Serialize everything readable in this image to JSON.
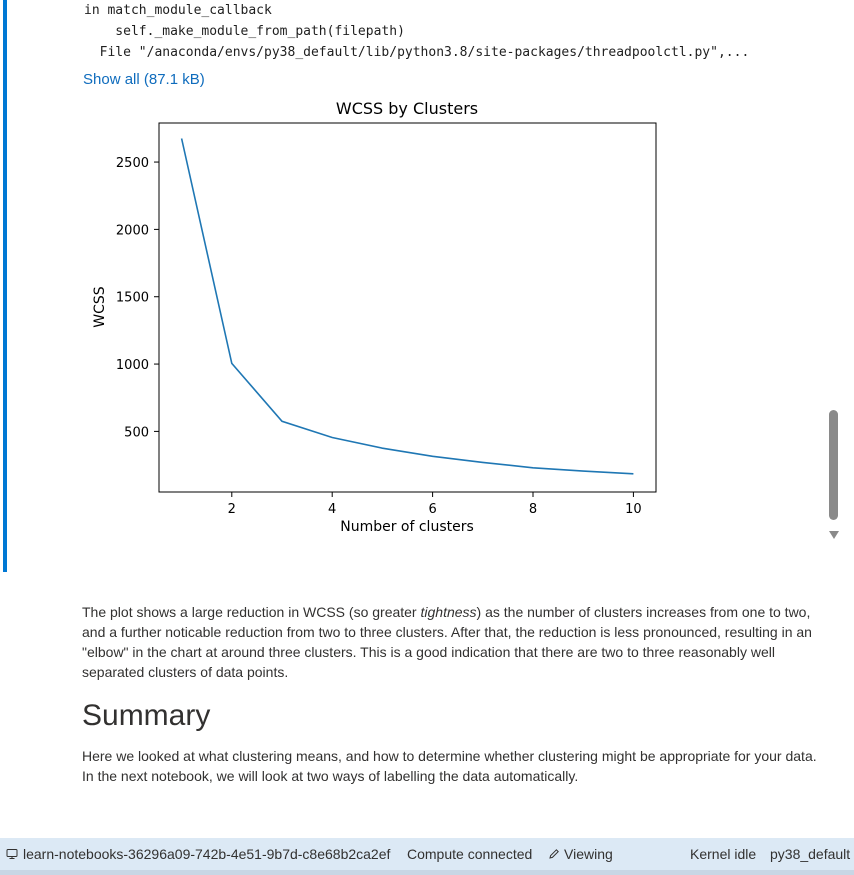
{
  "output": {
    "code_lines": [
      "in match_module_callback",
      "    self._make_module_from_path(filepath)",
      "  File \"/anaconda/envs/py38_default/lib/python3.8/site-packages/threadpoolctl.py\",..."
    ],
    "show_all_label": "Show all (87.1 kB)"
  },
  "chart_data": {
    "type": "line",
    "title": "WCSS by Clusters",
    "xlabel": "Number of clusters",
    "ylabel": "WCSS",
    "x": [
      1,
      2,
      3,
      4,
      5,
      6,
      7,
      8,
      9,
      10
    ],
    "values": [
      2675,
      1005,
      575,
      455,
      375,
      315,
      270,
      230,
      205,
      185
    ],
    "xlim": [
      0.55,
      10.45
    ],
    "ylim": [
      50,
      2790
    ],
    "xticks": [
      2,
      4,
      6,
      8,
      10
    ],
    "yticks": [
      500,
      1000,
      1500,
      2000,
      2500
    ],
    "line_color": "#1f77b4",
    "grid": false
  },
  "markdown": {
    "para1_before": "The plot shows a large reduction in WCSS (so greater ",
    "para1_em": "tightness",
    "para1_after": ") as the number of clusters increases from one to two, and a further noticable reduction from two to three clusters. After that, the reduction is less pronounced, resulting in an \"elbow\" in the chart at around three clusters. This is a good indication that there are two to three reasonably well separated clusters of data points.",
    "heading": "Summary",
    "para2": "Here we looked at what clustering means, and how to determine whether clustering might be appropriate for your data. In the next notebook, we will look at two ways of labelling the data automatically."
  },
  "statusbar": {
    "compute_icon": "computer-icon",
    "compute_name": "learn-notebooks-36296a09-742b-4e51-9b7d-c8e68b2ca2ef",
    "connection": "Compute connected",
    "edit_icon": "pencil-icon",
    "mode": "Viewing",
    "kernel_status": "Kernel idle",
    "kernel_name": "py38_default"
  },
  "colors": {
    "accent": "#0078d4",
    "link": "#0f6cbd",
    "statusbar_bg": "#dce9f5"
  }
}
